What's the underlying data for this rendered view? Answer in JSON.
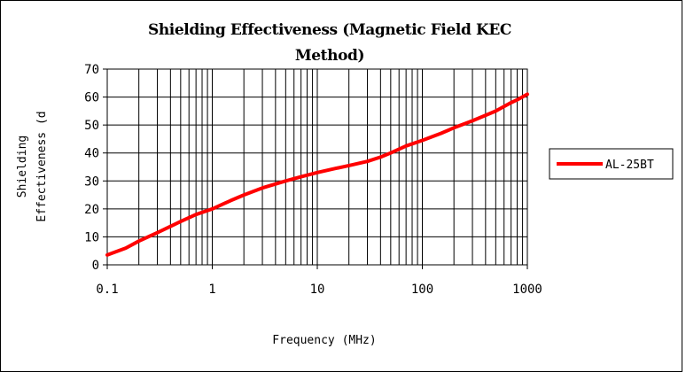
{
  "chart_data": {
    "type": "line",
    "title_lines": [
      "Shielding Effectiveness (Magnetic Field KEC",
      "Method)"
    ],
    "xlabel": "Frequency (MHz)",
    "ylabel_lines": [
      "Shielding",
      "Effectiveness (d"
    ],
    "x_scale": "log",
    "xlim": [
      0.1,
      1000
    ],
    "ylim": [
      0,
      70
    ],
    "x_ticks": [
      "0.1",
      "1",
      "10",
      "100",
      "1000"
    ],
    "y_ticks": [
      "0",
      "10",
      "20",
      "30",
      "40",
      "50",
      "60",
      "70"
    ],
    "grid": true,
    "legend_position": "right",
    "series": [
      {
        "name": "AL-25BT",
        "color": "#ff0000",
        "x": [
          0.1,
          0.15,
          0.2,
          0.3,
          0.5,
          0.7,
          1,
          1.5,
          2,
          3,
          5,
          7,
          10,
          15,
          20,
          30,
          40,
          50,
          70,
          100,
          150,
          200,
          300,
          500,
          700,
          800,
          1000
        ],
        "y": [
          3.5,
          6,
          8.5,
          11.5,
          15.5,
          18,
          20,
          23,
          25,
          27.5,
          30,
          31.5,
          33,
          34.5,
          35.5,
          37,
          38.5,
          40,
          42.5,
          44.5,
          47,
          49,
          51.5,
          55,
          58,
          59,
          61
        ]
      }
    ]
  }
}
